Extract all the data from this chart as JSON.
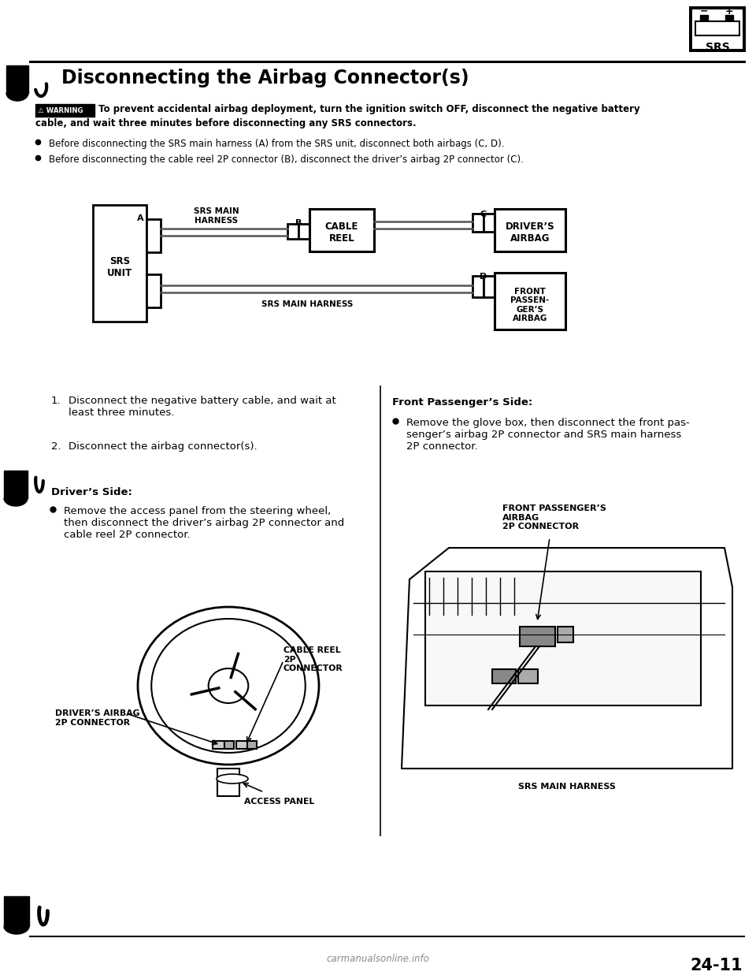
{
  "title": "Disconnecting the Airbag Connector(s)",
  "page_number": "24-11",
  "warning_text_line1": "To prevent accidental airbag deployment, turn the ignition switch OFF, disconnect the negative battery",
  "warning_text_line2": "cable, and wait three minutes before disconnecting any SRS connectors.",
  "bullet_points": [
    "Before disconnecting the SRS main harness (A) from the SRS unit, disconnect both airbags (C, D).",
    "Before disconnecting the cable reel 2P connector (B), disconnect the driver’s airbag 2P connector (C)."
  ],
  "steps": [
    [
      "1.",
      "Disconnect the negative battery cable, and wait at\nleast three minutes."
    ],
    [
      "2.",
      "Disconnect the airbag connector(s)."
    ]
  ],
  "drivers_side_title": "Driver’s Side:",
  "drivers_side_bullet": "Remove the access panel from the steering wheel,\nthen disconnect the driver’s airbag 2P connector and\ncable reel 2P connector.",
  "front_passenger_title": "Front Passenger’s Side:",
  "front_passenger_bullet": "Remove the glove box, then disconnect the front pas-\nsenger’s airbag 2P connector and SRS main harness\n2P connector.",
  "diag": {
    "srs_unit": "SRS\nUNIT",
    "srs_main_harness_top": "SRS MAIN\nHARNESS",
    "cable_reel": "CABLE\nREEL",
    "drivers_airbag": "DRIVER’S\nAIRBAG",
    "front_passenger_airbag": "FRONT\nPASSEN-\nGER’S\nAIRBAG",
    "srs_main_harness_bottom": "SRS MAIN HARNESS",
    "label_A": "A",
    "label_B": "B",
    "label_C": "C",
    "label_D": "D"
  },
  "left_labels": {
    "cable_reel": "CABLE REEL\n2P\nCONNECTOR",
    "drivers_airbag": "DRIVER’S AIRBAG\n2P CONNECTOR",
    "access_panel": "ACCESS PANEL"
  },
  "right_labels": {
    "front_passenger": "FRONT PASSENGER’S\nAIRBAG\n2P CONNECTOR",
    "srs_harness": "SRS MAIN HARNESS"
  },
  "bg_color": "#ffffff"
}
